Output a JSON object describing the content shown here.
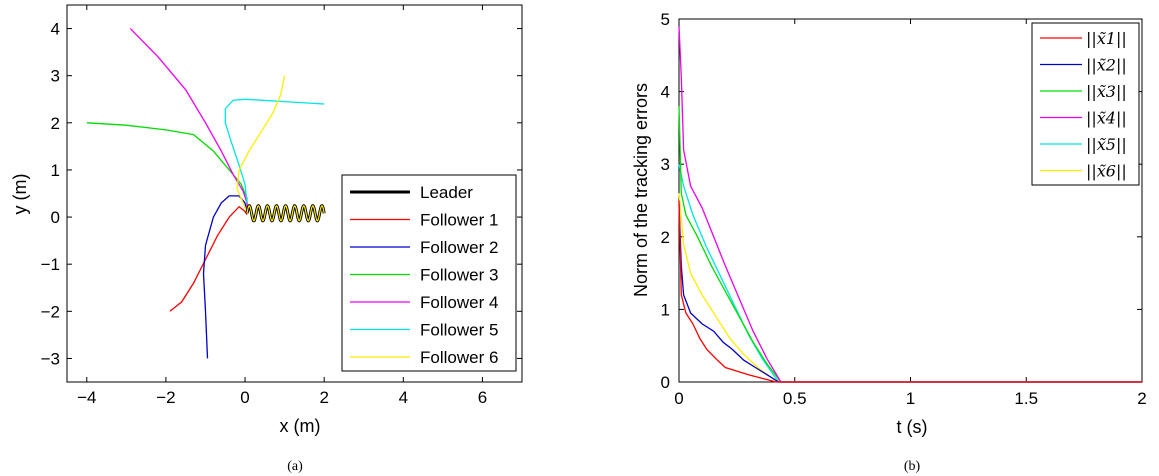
{
  "chart_data": [
    {
      "type": "line",
      "caption": "(a)",
      "xlabel": "x (m)",
      "ylabel": "y (m)",
      "xlim": [
        -4.5,
        7
      ],
      "ylim": [
        -3.5,
        4.5
      ],
      "xticks": [
        "−4",
        "−2",
        "0",
        "2",
        "4",
        "6"
      ],
      "yticks": [
        "−3",
        "−2",
        "−1",
        "0",
        "1",
        "2",
        "3",
        "4"
      ],
      "legend_position": "bottom-right",
      "series": [
        {
          "name": "Leader",
          "color": "#000000"
        },
        {
          "name": "Follower 1",
          "color": "#ff0000",
          "points": [
            [
              -1.9,
              -2.0
            ],
            [
              -1.6,
              -1.8
            ],
            [
              -1.3,
              -1.4
            ],
            [
              -1.0,
              -0.9
            ],
            [
              -0.7,
              -0.4
            ],
            [
              -0.4,
              0.0
            ],
            [
              -0.15,
              0.22
            ],
            [
              0.0,
              0.12
            ],
            [
              0.05,
              0.05
            ]
          ]
        },
        {
          "name": "Follower 2",
          "color": "#0000cc",
          "points": [
            [
              -0.95,
              -3.0
            ],
            [
              -1.0,
              -2.0
            ],
            [
              -1.05,
              -1.2
            ],
            [
              -1.0,
              -0.6
            ],
            [
              -0.8,
              0.0
            ],
            [
              -0.6,
              0.3
            ],
            [
              -0.4,
              0.45
            ],
            [
              -0.15,
              0.45
            ],
            [
              0.0,
              0.3
            ],
            [
              0.05,
              0.1
            ]
          ]
        },
        {
          "name": "Follower 3",
          "color": "#00dd00",
          "points": [
            [
              -4.0,
              2.0
            ],
            [
              -3.0,
              1.95
            ],
            [
              -2.0,
              1.85
            ],
            [
              -1.3,
              1.75
            ],
            [
              -0.8,
              1.4
            ],
            [
              -0.4,
              1.0
            ],
            [
              -0.1,
              0.7
            ],
            [
              0.05,
              0.4
            ],
            [
              0.05,
              0.15
            ]
          ]
        },
        {
          "name": "Follower 4",
          "color": "#ee00ee",
          "points": [
            [
              -2.9,
              4.0
            ],
            [
              -2.2,
              3.4
            ],
            [
              -1.5,
              2.7
            ],
            [
              -1.0,
              2.0
            ],
            [
              -0.6,
              1.4
            ],
            [
              -0.3,
              0.9
            ],
            [
              -0.05,
              0.55
            ],
            [
              0.05,
              0.3
            ],
            [
              0.05,
              0.15
            ]
          ]
        },
        {
          "name": "Follower 5",
          "color": "#00e5e5",
          "points": [
            [
              2.0,
              2.4
            ],
            [
              1.0,
              2.45
            ],
            [
              0.0,
              2.5
            ],
            [
              -0.3,
              2.48
            ],
            [
              -0.5,
              2.3
            ],
            [
              -0.5,
              2.0
            ],
            [
              -0.35,
              1.6
            ],
            [
              -0.15,
              1.1
            ],
            [
              0.0,
              0.7
            ],
            [
              0.05,
              0.3
            ]
          ]
        },
        {
          "name": "Follower 6",
          "color": "#ffee00",
          "points": [
            [
              1.0,
              3.0
            ],
            [
              0.9,
              2.6
            ],
            [
              0.7,
              2.2
            ],
            [
              0.4,
              1.8
            ],
            [
              0.1,
              1.4
            ],
            [
              -0.15,
              1.0
            ],
            [
              -0.2,
              0.6
            ],
            [
              -0.05,
              0.3
            ],
            [
              0.05,
              0.1
            ]
          ]
        }
      ],
      "leader_wave": {
        "x_start": 0.05,
        "x_end": 2.0,
        "center": 0.08,
        "amplitude": 0.16,
        "cycles": 8.5
      }
    },
    {
      "type": "line",
      "caption": "(b)",
      "xlabel": "t (s)",
      "ylabel": "Norm of the tracking errors",
      "xlim": [
        0,
        2
      ],
      "ylim": [
        0,
        5
      ],
      "xticks": [
        "0",
        "0.5",
        "1",
        "1.5",
        "2"
      ],
      "yticks": [
        "0",
        "1",
        "2",
        "3",
        "4",
        "5"
      ],
      "legend_position": "top-right",
      "series": [
        {
          "name": "||x̃1||",
          "sym": "1",
          "color": "#ff0000",
          "points": [
            [
              0,
              2.5
            ],
            [
              0.01,
              1.2
            ],
            [
              0.03,
              0.95
            ],
            [
              0.06,
              0.8
            ],
            [
              0.09,
              0.6
            ],
            [
              0.12,
              0.45
            ],
            [
              0.16,
              0.32
            ],
            [
              0.2,
              0.2
            ],
            [
              0.25,
              0.15
            ],
            [
              0.3,
              0.1
            ],
            [
              0.36,
              0.05
            ],
            [
              0.42,
              0.0
            ],
            [
              2.0,
              0.0
            ]
          ]
        },
        {
          "name": "||x̃2||",
          "sym": "2",
          "color": "#0000cc",
          "points": [
            [
              0,
              2.45
            ],
            [
              0.01,
              1.6
            ],
            [
              0.02,
              1.2
            ],
            [
              0.05,
              0.95
            ],
            [
              0.1,
              0.8
            ],
            [
              0.15,
              0.7
            ],
            [
              0.19,
              0.55
            ],
            [
              0.23,
              0.45
            ],
            [
              0.28,
              0.3
            ],
            [
              0.33,
              0.2
            ],
            [
              0.38,
              0.1
            ],
            [
              0.43,
              0.0
            ],
            [
              2.0,
              0.0
            ]
          ]
        },
        {
          "name": "||x̃3||",
          "sym": "3",
          "color": "#00dd00",
          "points": [
            [
              0,
              3.8
            ],
            [
              0.01,
              2.6
            ],
            [
              0.03,
              2.3
            ],
            [
              0.08,
              2.0
            ],
            [
              0.14,
              1.6
            ],
            [
              0.2,
              1.25
            ],
            [
              0.26,
              0.9
            ],
            [
              0.32,
              0.55
            ],
            [
              0.38,
              0.25
            ],
            [
              0.44,
              0.0
            ],
            [
              2.0,
              0.0
            ]
          ]
        },
        {
          "name": "||x̃4||",
          "sym": "4",
          "color": "#ee00ee",
          "points": [
            [
              0,
              4.9
            ],
            [
              0.01,
              4.2
            ],
            [
              0.02,
              3.2
            ],
            [
              0.05,
              2.7
            ],
            [
              0.1,
              2.4
            ],
            [
              0.15,
              2.0
            ],
            [
              0.2,
              1.6
            ],
            [
              0.26,
              1.15
            ],
            [
              0.32,
              0.7
            ],
            [
              0.38,
              0.32
            ],
            [
              0.44,
              0.0
            ],
            [
              2.0,
              0.0
            ]
          ]
        },
        {
          "name": "||x̃5||",
          "sym": "5",
          "color": "#00e5e5",
          "points": [
            [
              0,
              3.0
            ],
            [
              0.02,
              2.7
            ],
            [
              0.06,
              2.3
            ],
            [
              0.12,
              1.85
            ],
            [
              0.18,
              1.45
            ],
            [
              0.24,
              1.05
            ],
            [
              0.3,
              0.65
            ],
            [
              0.36,
              0.32
            ],
            [
              0.43,
              0.0
            ],
            [
              2.0,
              0.0
            ]
          ]
        },
        {
          "name": "||x̃6||",
          "sym": "6",
          "color": "#ffee00",
          "points": [
            [
              0,
              2.6
            ],
            [
              0.02,
              1.9
            ],
            [
              0.05,
              1.5
            ],
            [
              0.1,
              1.2
            ],
            [
              0.16,
              0.9
            ],
            [
              0.22,
              0.6
            ],
            [
              0.28,
              0.38
            ],
            [
              0.34,
              0.2
            ],
            [
              0.4,
              0.06
            ],
            [
              0.44,
              0.0
            ],
            [
              2.0,
              0.0
            ]
          ]
        }
      ]
    }
  ]
}
